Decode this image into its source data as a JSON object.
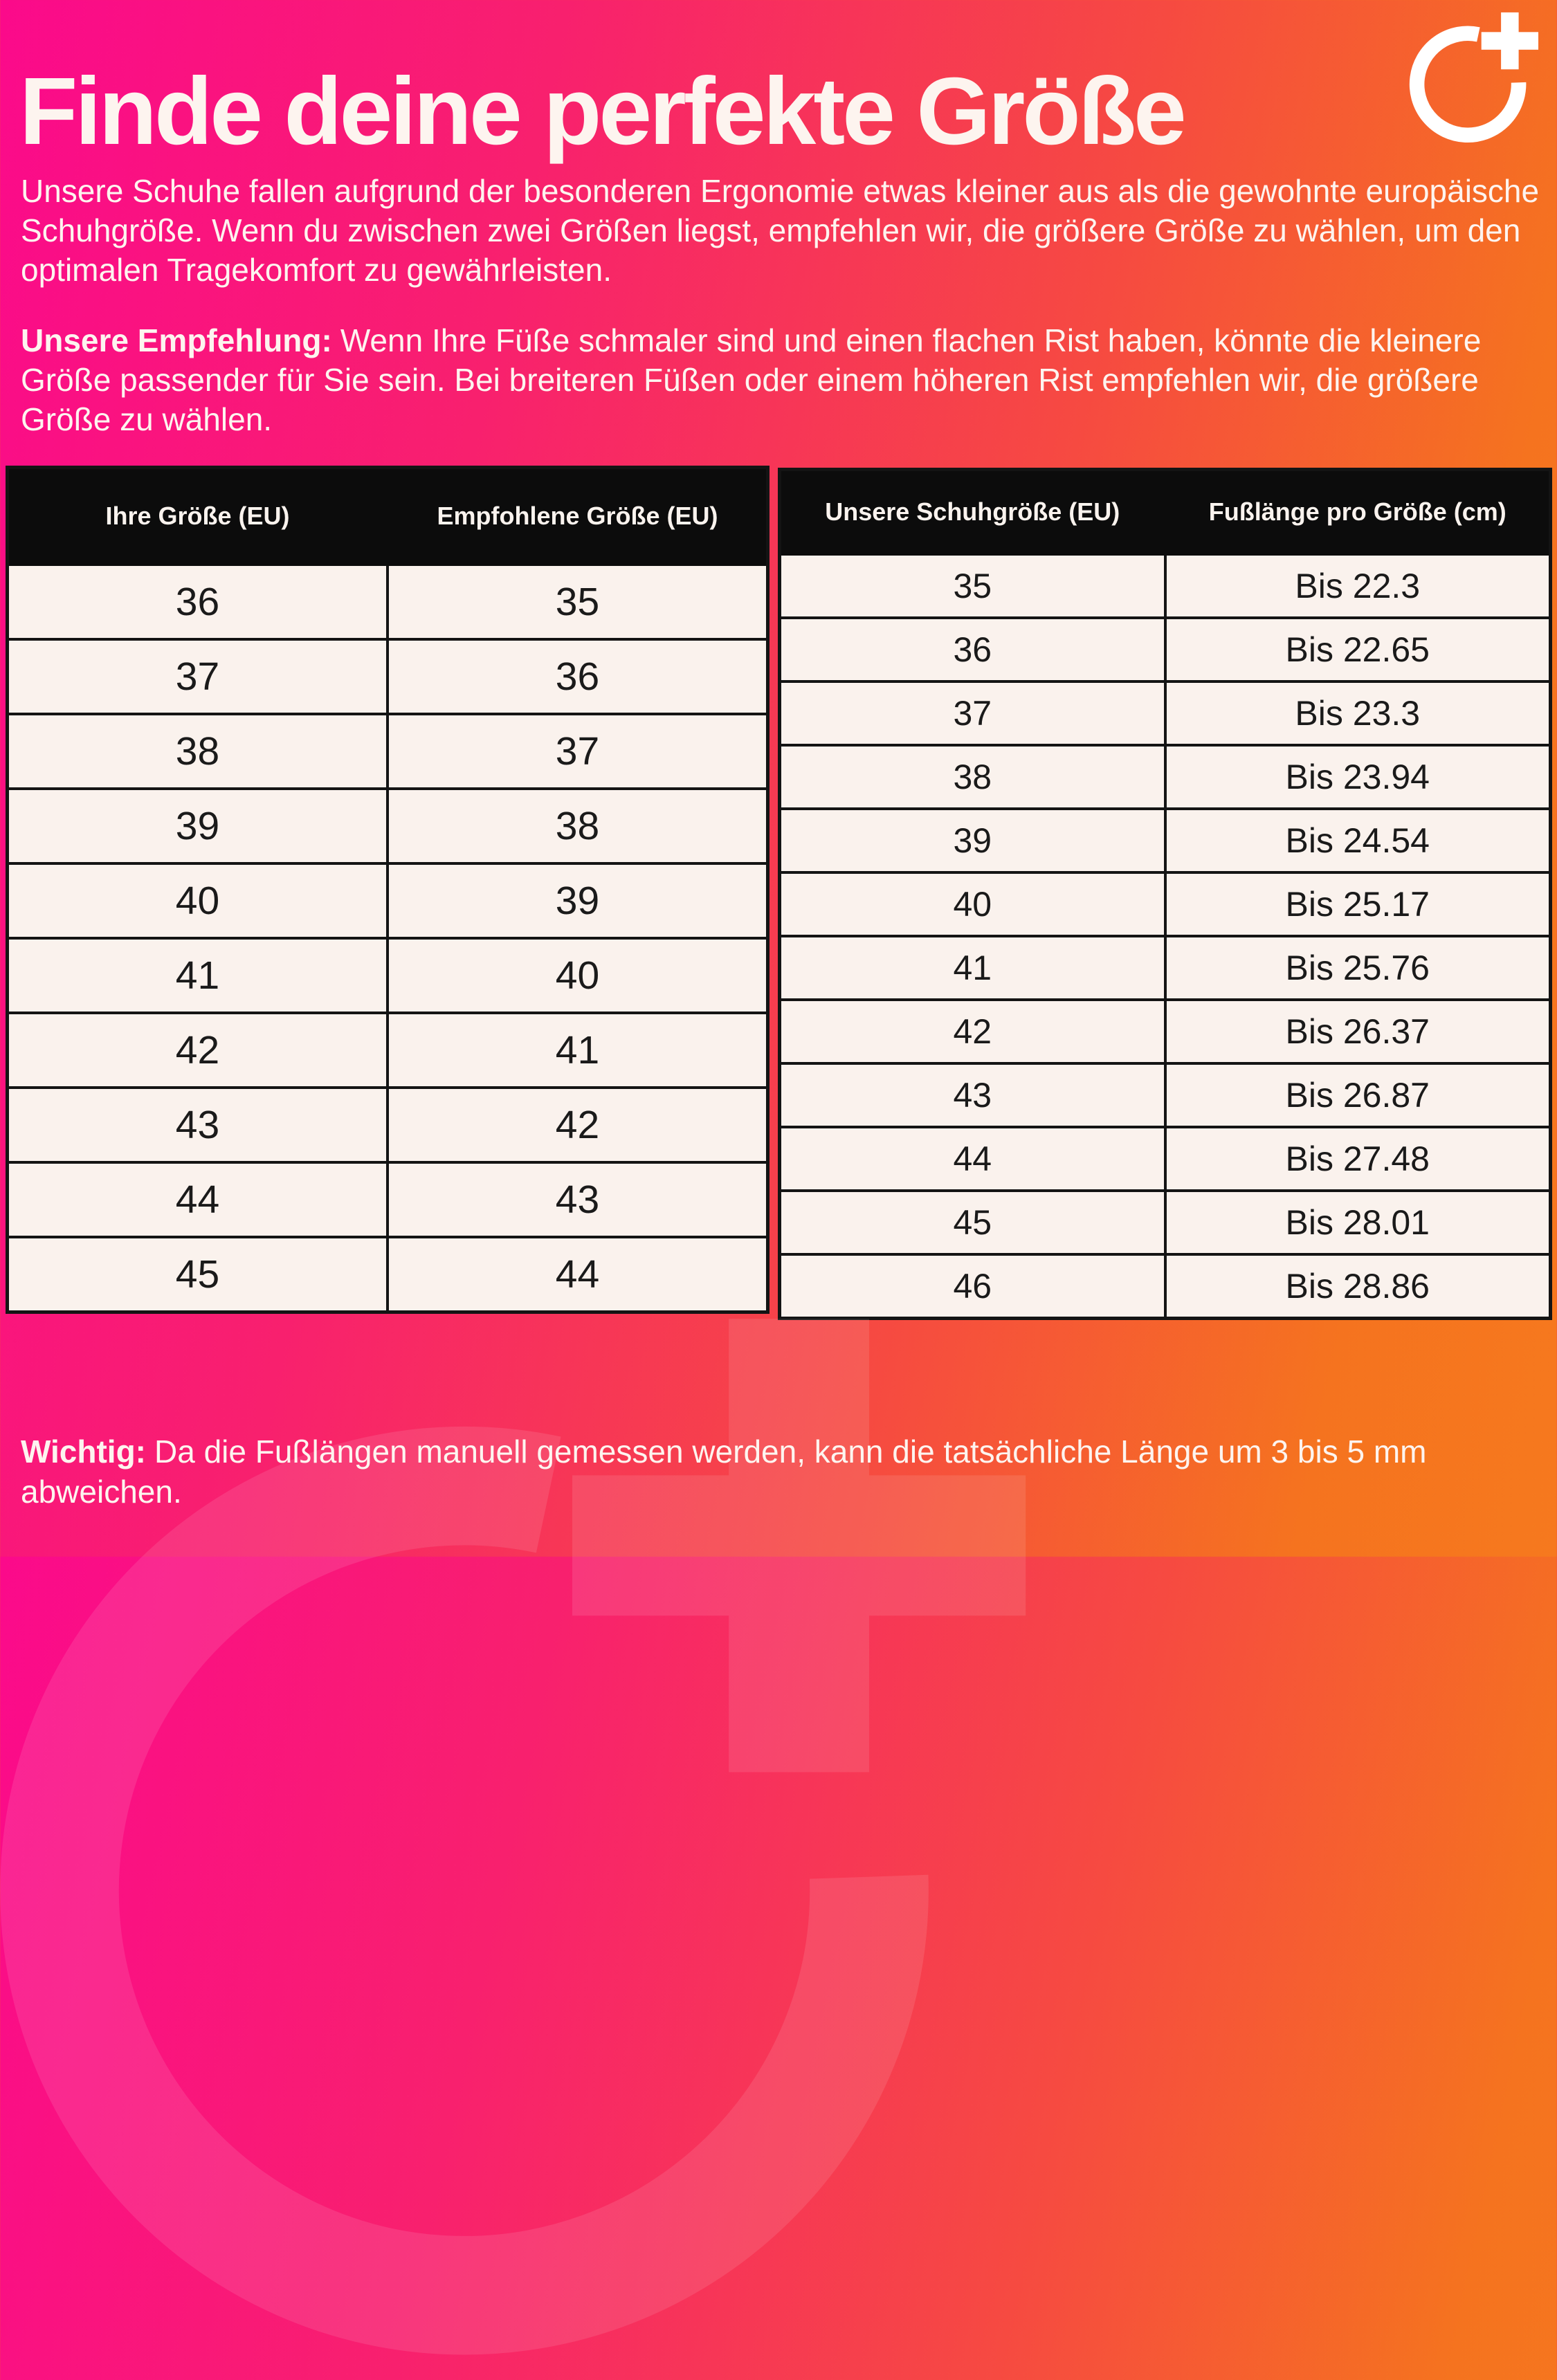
{
  "page": {
    "title": "Finde deine perfekte Größe",
    "intro": "Unsere Schuhe fallen aufgrund der besonderen Ergonomie etwas kleiner aus als die gewohnte europäische Schuhgröße. Wenn du zwischen zwei Größen liegst, empfehlen wir, die größere Größe zu wählen, um den optimalen Tragekomfort zu gewährleisten.",
    "recommendation_label": "Unsere Empfehlung:",
    "recommendation_text": "Wenn Ihre Füße schmaler sind und einen flachen Rist haben, könnte die kleinere Größe passender für Sie sein. Bei breiteren Füßen oder einem höheren Rist empfehlen wir, die größere Größe zu wählen.",
    "note_label": "Wichtig:",
    "note_text": "Da die Fußlängen manuell gemessen werden, kann die tatsächliche Länge um 3 bis 5 mm abweichen."
  },
  "logo": {
    "icon": "circle-plus-logo",
    "color": "#ffffff"
  },
  "colors": {
    "gradient_start": "#fb0a8b",
    "gradient_end": "#f5731f",
    "table_header_bg": "#0c0c0c",
    "table_cell_bg": "#faf2ed",
    "table_border": "#141414",
    "text": "#fdf4ef"
  },
  "size_recommendation_table": {
    "headers": [
      "Ihre Größe (EU)",
      "Empfohlene Größe (EU)"
    ],
    "rows": [
      [
        "36",
        "35"
      ],
      [
        "37",
        "36"
      ],
      [
        "38",
        "37"
      ],
      [
        "39",
        "38"
      ],
      [
        "40",
        "39"
      ],
      [
        "41",
        "40"
      ],
      [
        "42",
        "41"
      ],
      [
        "43",
        "42"
      ],
      [
        "44",
        "43"
      ],
      [
        "45",
        "44"
      ]
    ]
  },
  "foot_length_table": {
    "headers": [
      "Unsere Schuhgröße (EU)",
      "Fußlänge pro Größe (cm)"
    ],
    "rows": [
      [
        "35",
        "Bis 22.3"
      ],
      [
        "36",
        "Bis 22.65"
      ],
      [
        "37",
        "Bis 23.3"
      ],
      [
        "38",
        "Bis 23.94"
      ],
      [
        "39",
        "Bis 24.54"
      ],
      [
        "40",
        "Bis 25.17"
      ],
      [
        "41",
        "Bis 25.76"
      ],
      [
        "42",
        "Bis 26.37"
      ],
      [
        "43",
        "Bis 26.87"
      ],
      [
        "44",
        "Bis 27.48"
      ],
      [
        "45",
        "Bis 28.01"
      ],
      [
        "46",
        "Bis 28.86"
      ]
    ]
  }
}
